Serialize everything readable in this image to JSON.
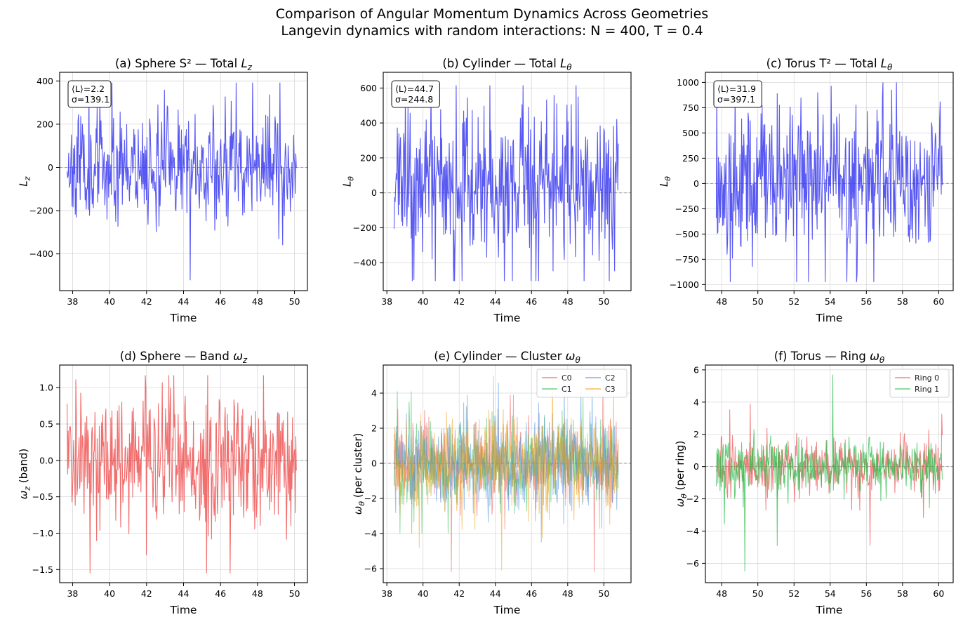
{
  "figure": {
    "title_line1": "Comparison of Angular Momentum Dynamics Across Geometries",
    "title_line2": "Langevin dynamics with random interactions: N = 400, T = 0.4"
  },
  "chart_data": [
    {
      "id": "a",
      "type": "line",
      "title": "(a) Sphere S² — Total L_z",
      "xlabel": "Time",
      "ylabel": "L_z",
      "xlim": [
        37.3,
        50.7
      ],
      "ylim": [
        -570,
        440
      ],
      "xticks": [
        38,
        40,
        42,
        44,
        46,
        48,
        50
      ],
      "yticks": [
        -400,
        -200,
        0,
        200,
        400
      ],
      "yticklabels": [
        "−400",
        "−200",
        "0",
        "200",
        "400"
      ],
      "stats": [
        "⟨L⟩=2.2",
        "σ=139.1"
      ],
      "series": [
        {
          "name": "L_z",
          "color": "#3b3bf0",
          "x_start": 37.7,
          "x_end": 50.1,
          "n": 420,
          "mean": 2.2,
          "std": 139.1,
          "min": -522,
          "max": 392,
          "seed": 11
        }
      ]
    },
    {
      "id": "b",
      "type": "line",
      "title": "(b) Cylinder — Total L_θ",
      "xlabel": "Time",
      "ylabel": "L_θ",
      "xlim": [
        37.8,
        51.5
      ],
      "ylim": [
        -560,
        690
      ],
      "xticks": [
        38,
        40,
        42,
        44,
        46,
        48,
        50
      ],
      "yticks": [
        -400,
        -200,
        0,
        200,
        400,
        600
      ],
      "yticklabels": [
        "−400",
        "−200",
        "0",
        "200",
        "400",
        "600"
      ],
      "stats": [
        "⟨L⟩=44.7",
        "σ=244.8"
      ],
      "series": [
        {
          "name": "L_θ",
          "color": "#3b3bf0",
          "x_start": 38.4,
          "x_end": 50.8,
          "n": 420,
          "mean": 44.7,
          "std": 244.8,
          "min": -505,
          "max": 615,
          "seed": 23
        }
      ]
    },
    {
      "id": "c",
      "type": "line",
      "title": "(c) Torus T² — Total L_θ",
      "xlabel": "Time",
      "ylabel": "L_θ",
      "xlim": [
        47.1,
        60.8
      ],
      "ylim": [
        -1060,
        1100
      ],
      "xticks": [
        48,
        50,
        52,
        54,
        56,
        58,
        60
      ],
      "yticks": [
        -1000,
        -750,
        -500,
        -250,
        0,
        250,
        500,
        750,
        1000
      ],
      "yticklabels": [
        "−1000",
        "−750",
        "−500",
        "−250",
        "0",
        "250",
        "500",
        "750",
        "1000"
      ],
      "stats": [
        "⟨L⟩=31.9",
        "σ=397.1"
      ],
      "series": [
        {
          "name": "L_θ",
          "color": "#3b3bf0",
          "x_start": 47.7,
          "x_end": 60.2,
          "n": 420,
          "mean": 31.9,
          "std": 397.1,
          "min": -975,
          "max": 1000,
          "seed": 37
        }
      ]
    },
    {
      "id": "d",
      "type": "line",
      "title": "(d) Sphere — Band ω_z",
      "xlabel": "Time",
      "ylabel": "ω_z (band)",
      "xlim": [
        37.3,
        50.7
      ],
      "ylim": [
        -1.68,
        1.31
      ],
      "xticks": [
        38,
        40,
        42,
        44,
        46,
        48,
        50
      ],
      "yticks": [
        -1.5,
        -1.0,
        -0.5,
        0.0,
        0.5,
        1.0
      ],
      "yticklabels": [
        "−1.5",
        "−1.0",
        "−0.5",
        "0.0",
        "0.5",
        "1.0"
      ],
      "series": [
        {
          "name": "band",
          "color": "#ee5555",
          "x_start": 37.7,
          "x_end": 50.1,
          "n": 420,
          "mean": 0.0,
          "std": 0.5,
          "min": -1.55,
          "max": 1.17,
          "seed": 41
        }
      ]
    },
    {
      "id": "e",
      "type": "line",
      "title": "(e) Cylinder — Cluster ω_θ",
      "xlabel": "Time",
      "ylabel": "ω_θ (per cluster)",
      "xlim": [
        37.8,
        51.5
      ],
      "ylim": [
        -6.8,
        5.6
      ],
      "xticks": [
        38,
        40,
        42,
        44,
        46,
        48,
        50
      ],
      "yticks": [
        -6,
        -4,
        -2,
        0,
        2,
        4
      ],
      "yticklabels": [
        "−6",
        "−4",
        "−2",
        "0",
        "2",
        "4"
      ],
      "legend": {
        "position": "top-right",
        "columns": 2
      },
      "series": [
        {
          "name": "C0",
          "color": "#ee5555",
          "x_start": 38.4,
          "x_end": 50.8,
          "n": 420,
          "mean": 0.0,
          "std": 1.3,
          "min": -6.2,
          "max": 3.9,
          "seed": 53
        },
        {
          "name": "C1",
          "color": "#2dbd4e",
          "x_start": 38.4,
          "x_end": 50.8,
          "n": 420,
          "mean": 0.0,
          "std": 1.3,
          "min": -4.0,
          "max": 4.1,
          "seed": 59
        },
        {
          "name": "C2",
          "color": "#4a8fe0",
          "x_start": 38.4,
          "x_end": 50.8,
          "n": 420,
          "mean": 0.0,
          "std": 1.4,
          "min": -4.5,
          "max": 4.6,
          "seed": 61
        },
        {
          "name": "C3",
          "color": "#efa21a",
          "x_start": 38.4,
          "x_end": 50.8,
          "n": 420,
          "mean": 0.0,
          "std": 1.4,
          "min": -6.1,
          "max": 5.0,
          "seed": 67
        }
      ]
    },
    {
      "id": "f",
      "type": "line",
      "title": "(f) Torus — Ring ω_θ",
      "xlabel": "Time",
      "ylabel": "ω_θ (per ring)",
      "xlim": [
        47.1,
        60.8
      ],
      "ylim": [
        -7.2,
        6.3
      ],
      "xticks": [
        48,
        50,
        52,
        54,
        56,
        58,
        60
      ],
      "yticks": [
        -6,
        -4,
        -2,
        0,
        2,
        4,
        6
      ],
      "yticklabels": [
        "−6",
        "−4",
        "−2",
        "0",
        "2",
        "4",
        "6"
      ],
      "legend": {
        "position": "top-right",
        "columns": 1
      },
      "series": [
        {
          "name": "Ring 0",
          "color": "#ee5555",
          "x_start": 47.7,
          "x_end": 60.2,
          "n": 420,
          "mean": 0.0,
          "std": 0.9,
          "min": -4.9,
          "max": 3.9,
          "seed": 71
        },
        {
          "name": "Ring 1",
          "color": "#2dbd4e",
          "x_start": 47.7,
          "x_end": 60.2,
          "n": 420,
          "mean": 0.0,
          "std": 0.9,
          "min": -6.5,
          "max": 5.7,
          "seed": 79
        }
      ]
    }
  ]
}
